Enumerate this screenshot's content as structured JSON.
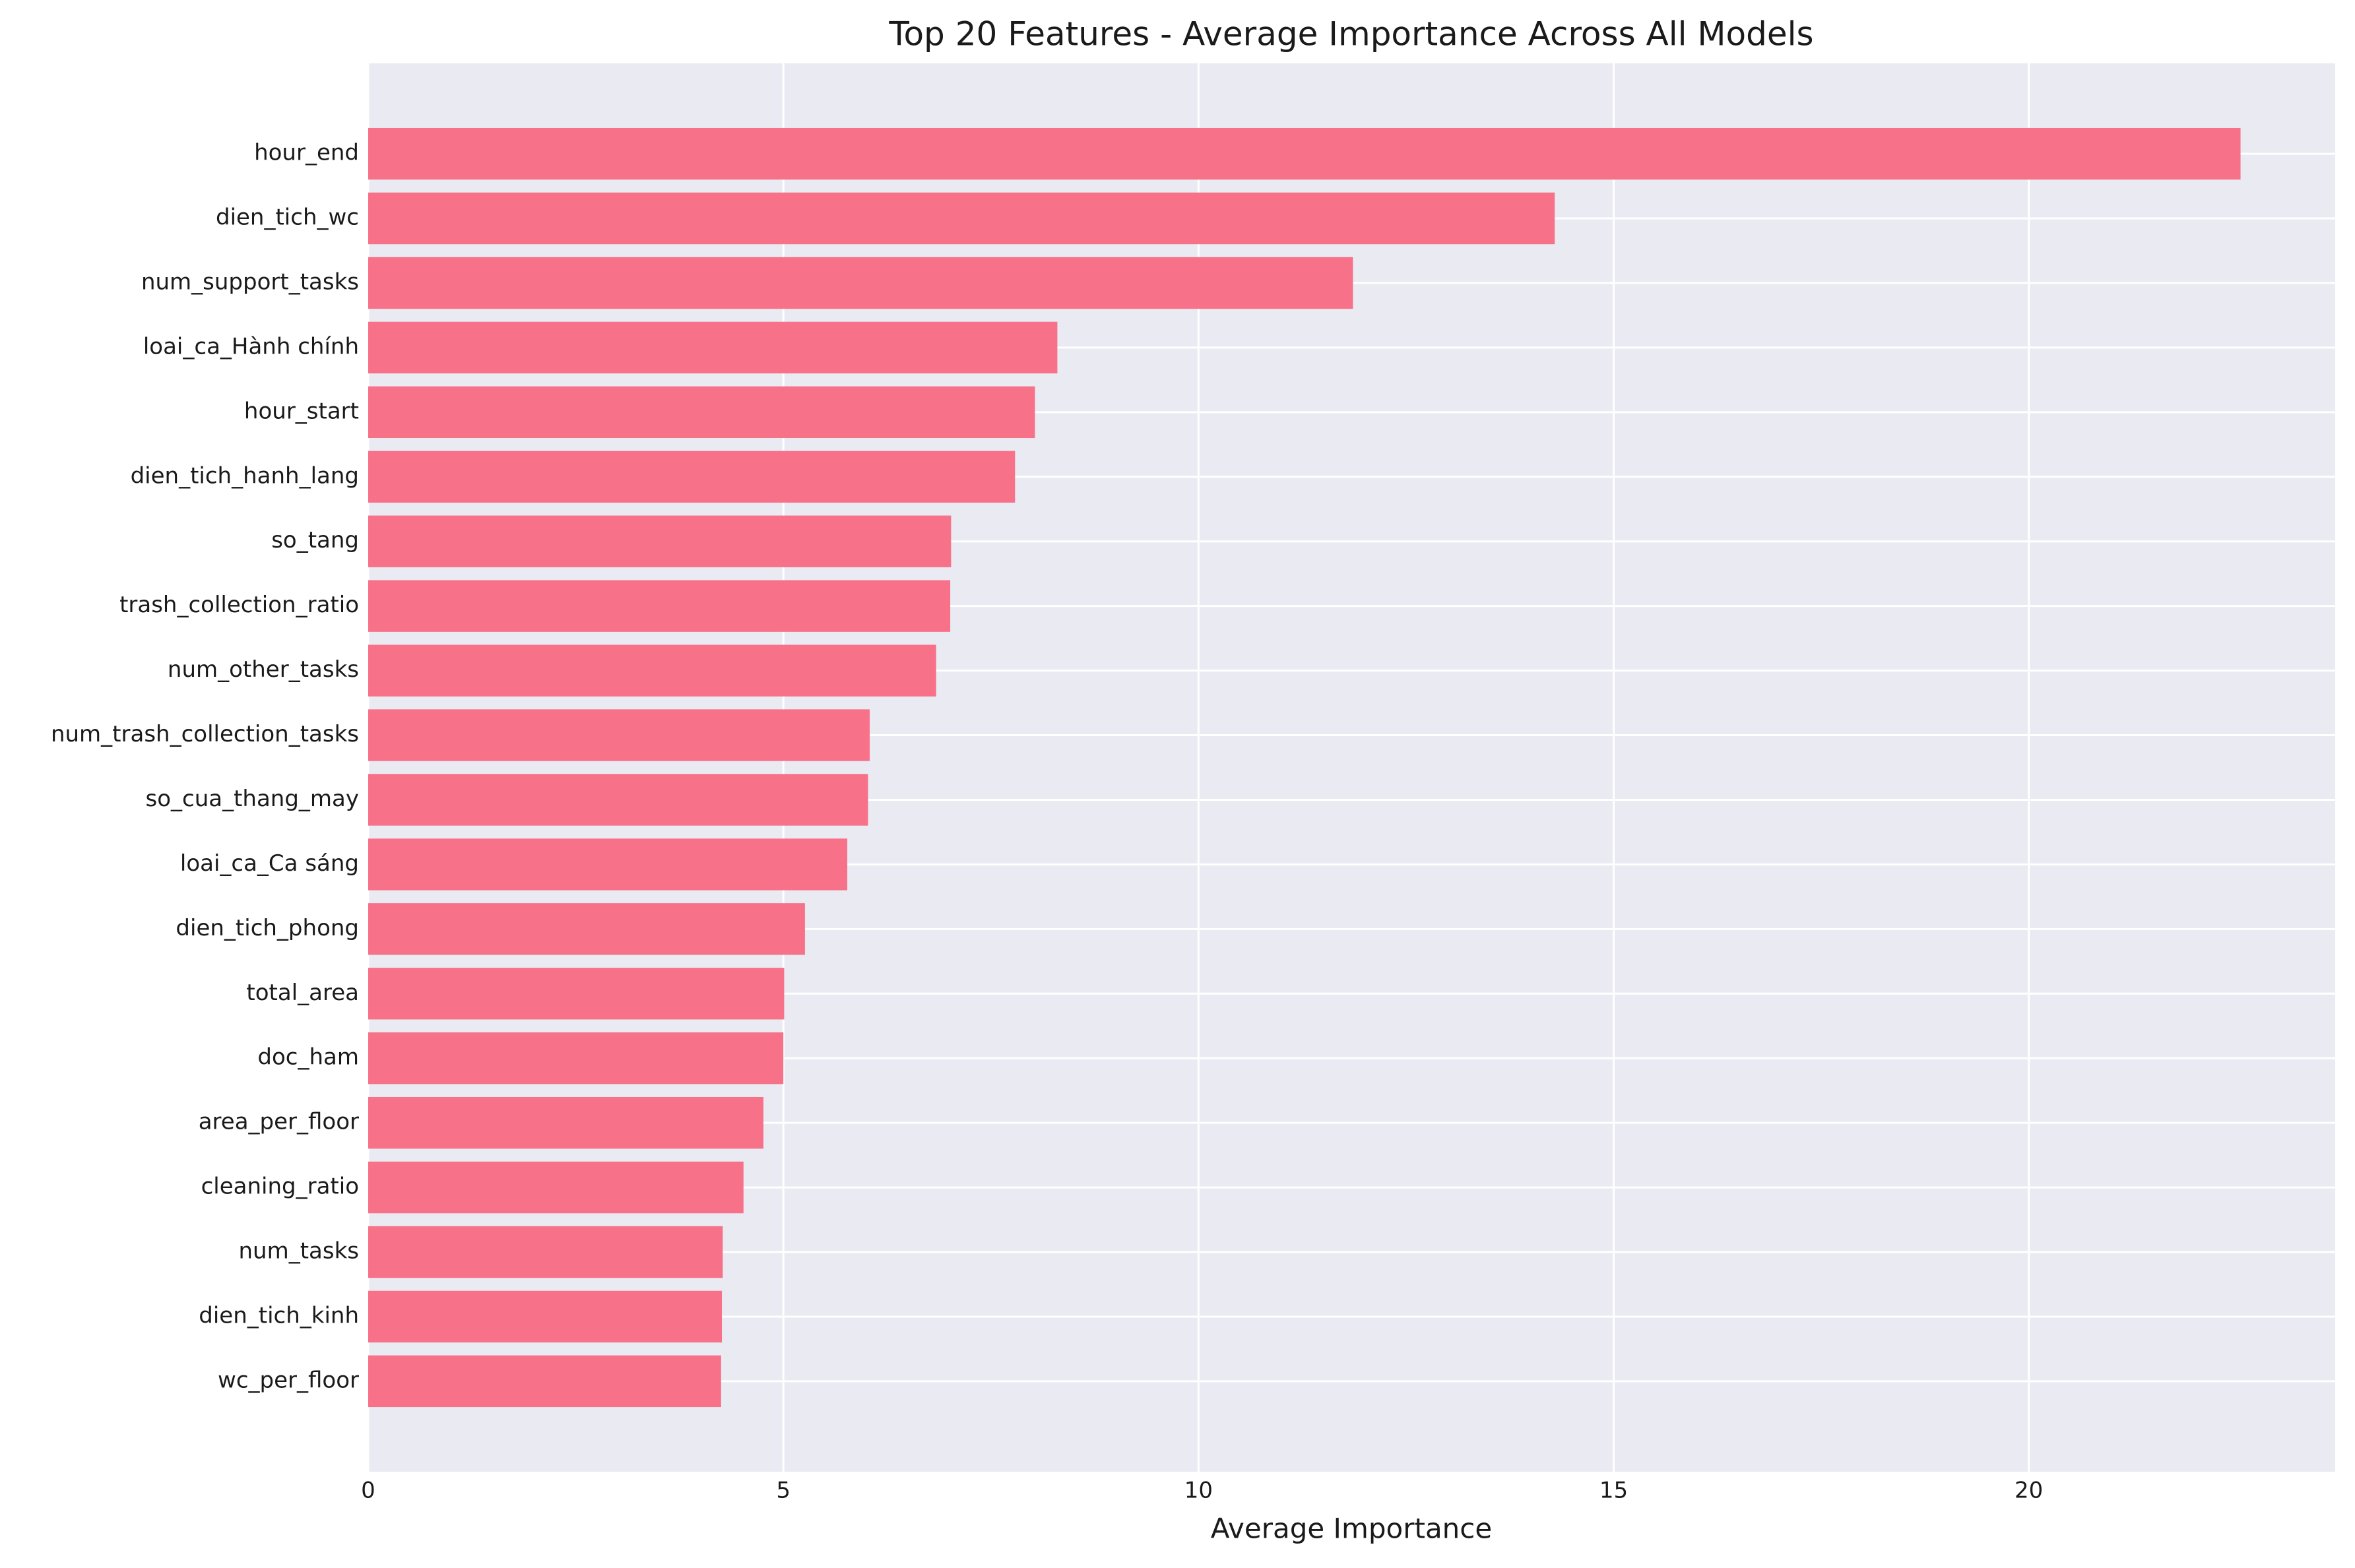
{
  "chart_data": {
    "type": "barh",
    "title": "Top 20 Features - Average Importance Across All Models",
    "x_label": "Average Importance",
    "categories": [
      "hour_end",
      "dien_tich_wc",
      "num_support_tasks",
      "loai_ca_Hành chính",
      "hour_start",
      "dien_tich_hanh_lang",
      "so_tang",
      "trash_collection_ratio",
      "num_other_tasks",
      "num_trash_collection_tasks",
      "so_cua_thang_may",
      "loai_ca_Ca sáng",
      "dien_tich_phong",
      "total_area",
      "doc_ham",
      "area_per_floor",
      "cleaning_ratio",
      "num_tasks",
      "dien_tich_kinh",
      "wc_per_floor"
    ],
    "values": [
      22.55,
      14.29,
      11.86,
      8.3,
      8.03,
      7.79,
      7.02,
      7.01,
      6.84,
      6.04,
      6.02,
      5.77,
      5.26,
      5.01,
      5.0,
      4.76,
      4.52,
      4.27,
      4.26,
      4.25
    ],
    "color": "#f77189",
    "xlim": [
      0,
      23.69
    ],
    "xticks": [
      0,
      5,
      10,
      15,
      20
    ],
    "grid": true
  }
}
